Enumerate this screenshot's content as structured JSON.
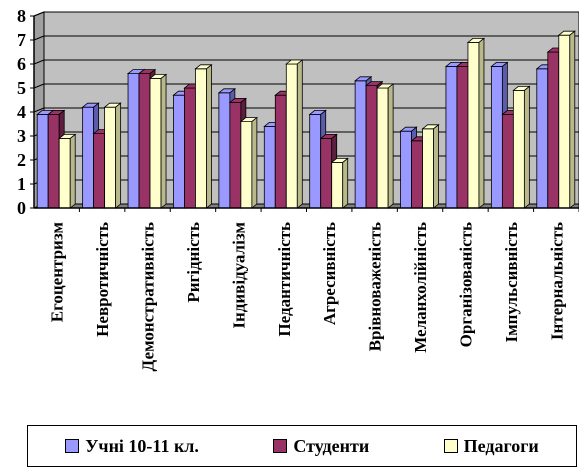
{
  "colors": {
    "wall": "#c0c0c0",
    "series": [
      "#9999ff",
      "#993366",
      "#ffffcc"
    ],
    "series_dark": [
      "#5c5cad",
      "#5e1f3f",
      "#b8b88a"
    ]
  },
  "chart_data": {
    "type": "bar",
    "title": "",
    "xlabel": "",
    "ylabel": "",
    "ylim": [
      0,
      8
    ],
    "yticks": [
      "0",
      "1",
      "2",
      "3",
      "4",
      "5",
      "6",
      "7",
      "8"
    ],
    "grid": true,
    "legend_position": "bottom",
    "categories": [
      "Егоцентризм",
      "Невротичність",
      "Демонстративність",
      "Ригідність",
      "Індивідуалізм",
      "Педантичність",
      "Агресивність",
      "Врівноваженість",
      "Меланхолійність",
      "Організованість",
      "Імпульсивність",
      "Інтернальність"
    ],
    "series": [
      {
        "name": "Учні 10-11 кл.",
        "values": [
          3.9,
          4.2,
          5.6,
          4.7,
          4.8,
          3.4,
          3.9,
          5.3,
          3.2,
          5.9,
          5.9,
          5.8
        ]
      },
      {
        "name": "Студенти",
        "values": [
          3.9,
          3.1,
          5.6,
          5.0,
          4.4,
          4.7,
          2.9,
          5.1,
          2.8,
          5.9,
          3.9,
          6.5
        ]
      },
      {
        "name": "Педагоги",
        "values": [
          2.9,
          4.2,
          5.4,
          5.8,
          3.6,
          6.0,
          1.9,
          5.0,
          3.3,
          6.9,
          4.9,
          7.2
        ]
      }
    ]
  }
}
